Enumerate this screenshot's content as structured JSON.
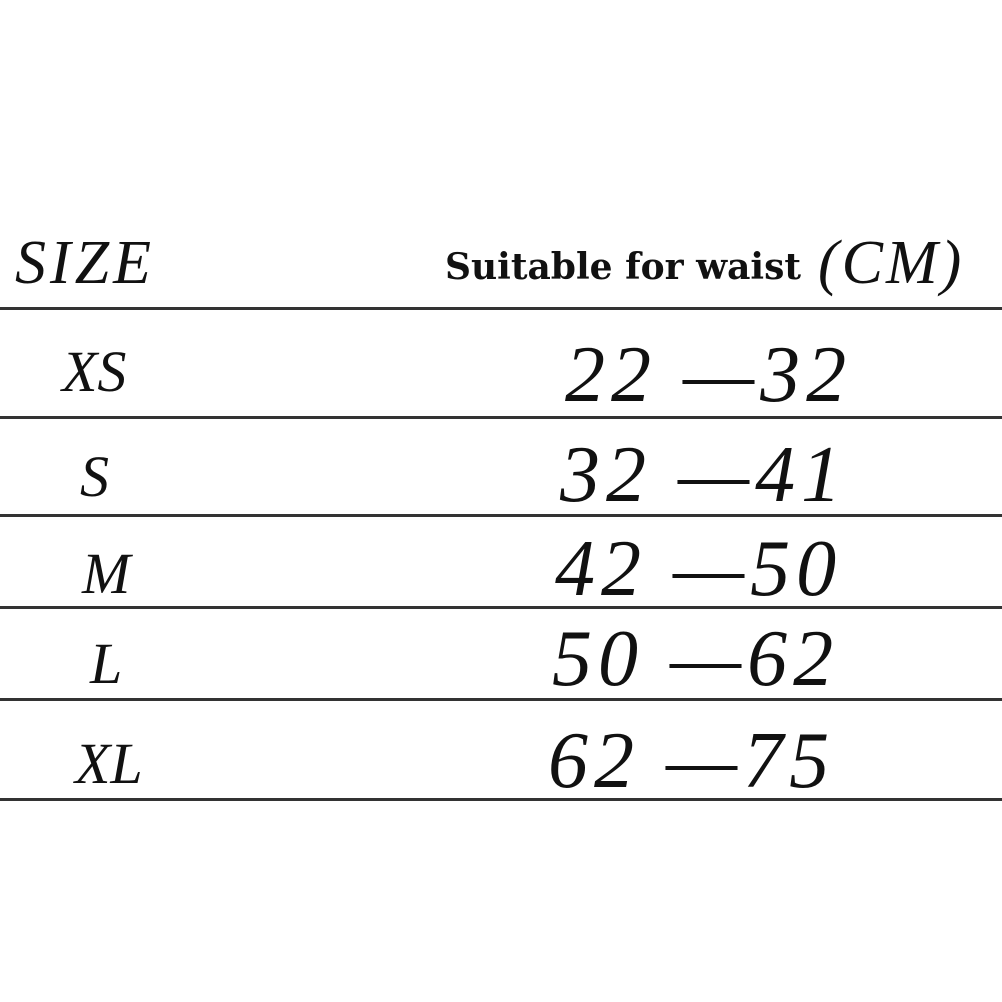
{
  "header": {
    "size_label": "SIZE",
    "waist_label": "Suitable for waist",
    "unit_label": "(CM)"
  },
  "rows": [
    {
      "size": "XS",
      "range": "22 —32"
    },
    {
      "size": "S",
      "range": "32 —41"
    },
    {
      "size": "M",
      "range": "42 —50"
    },
    {
      "size": "L",
      "range": "50 —62"
    },
    {
      "size": "XL",
      "range": "62 —75"
    }
  ]
}
